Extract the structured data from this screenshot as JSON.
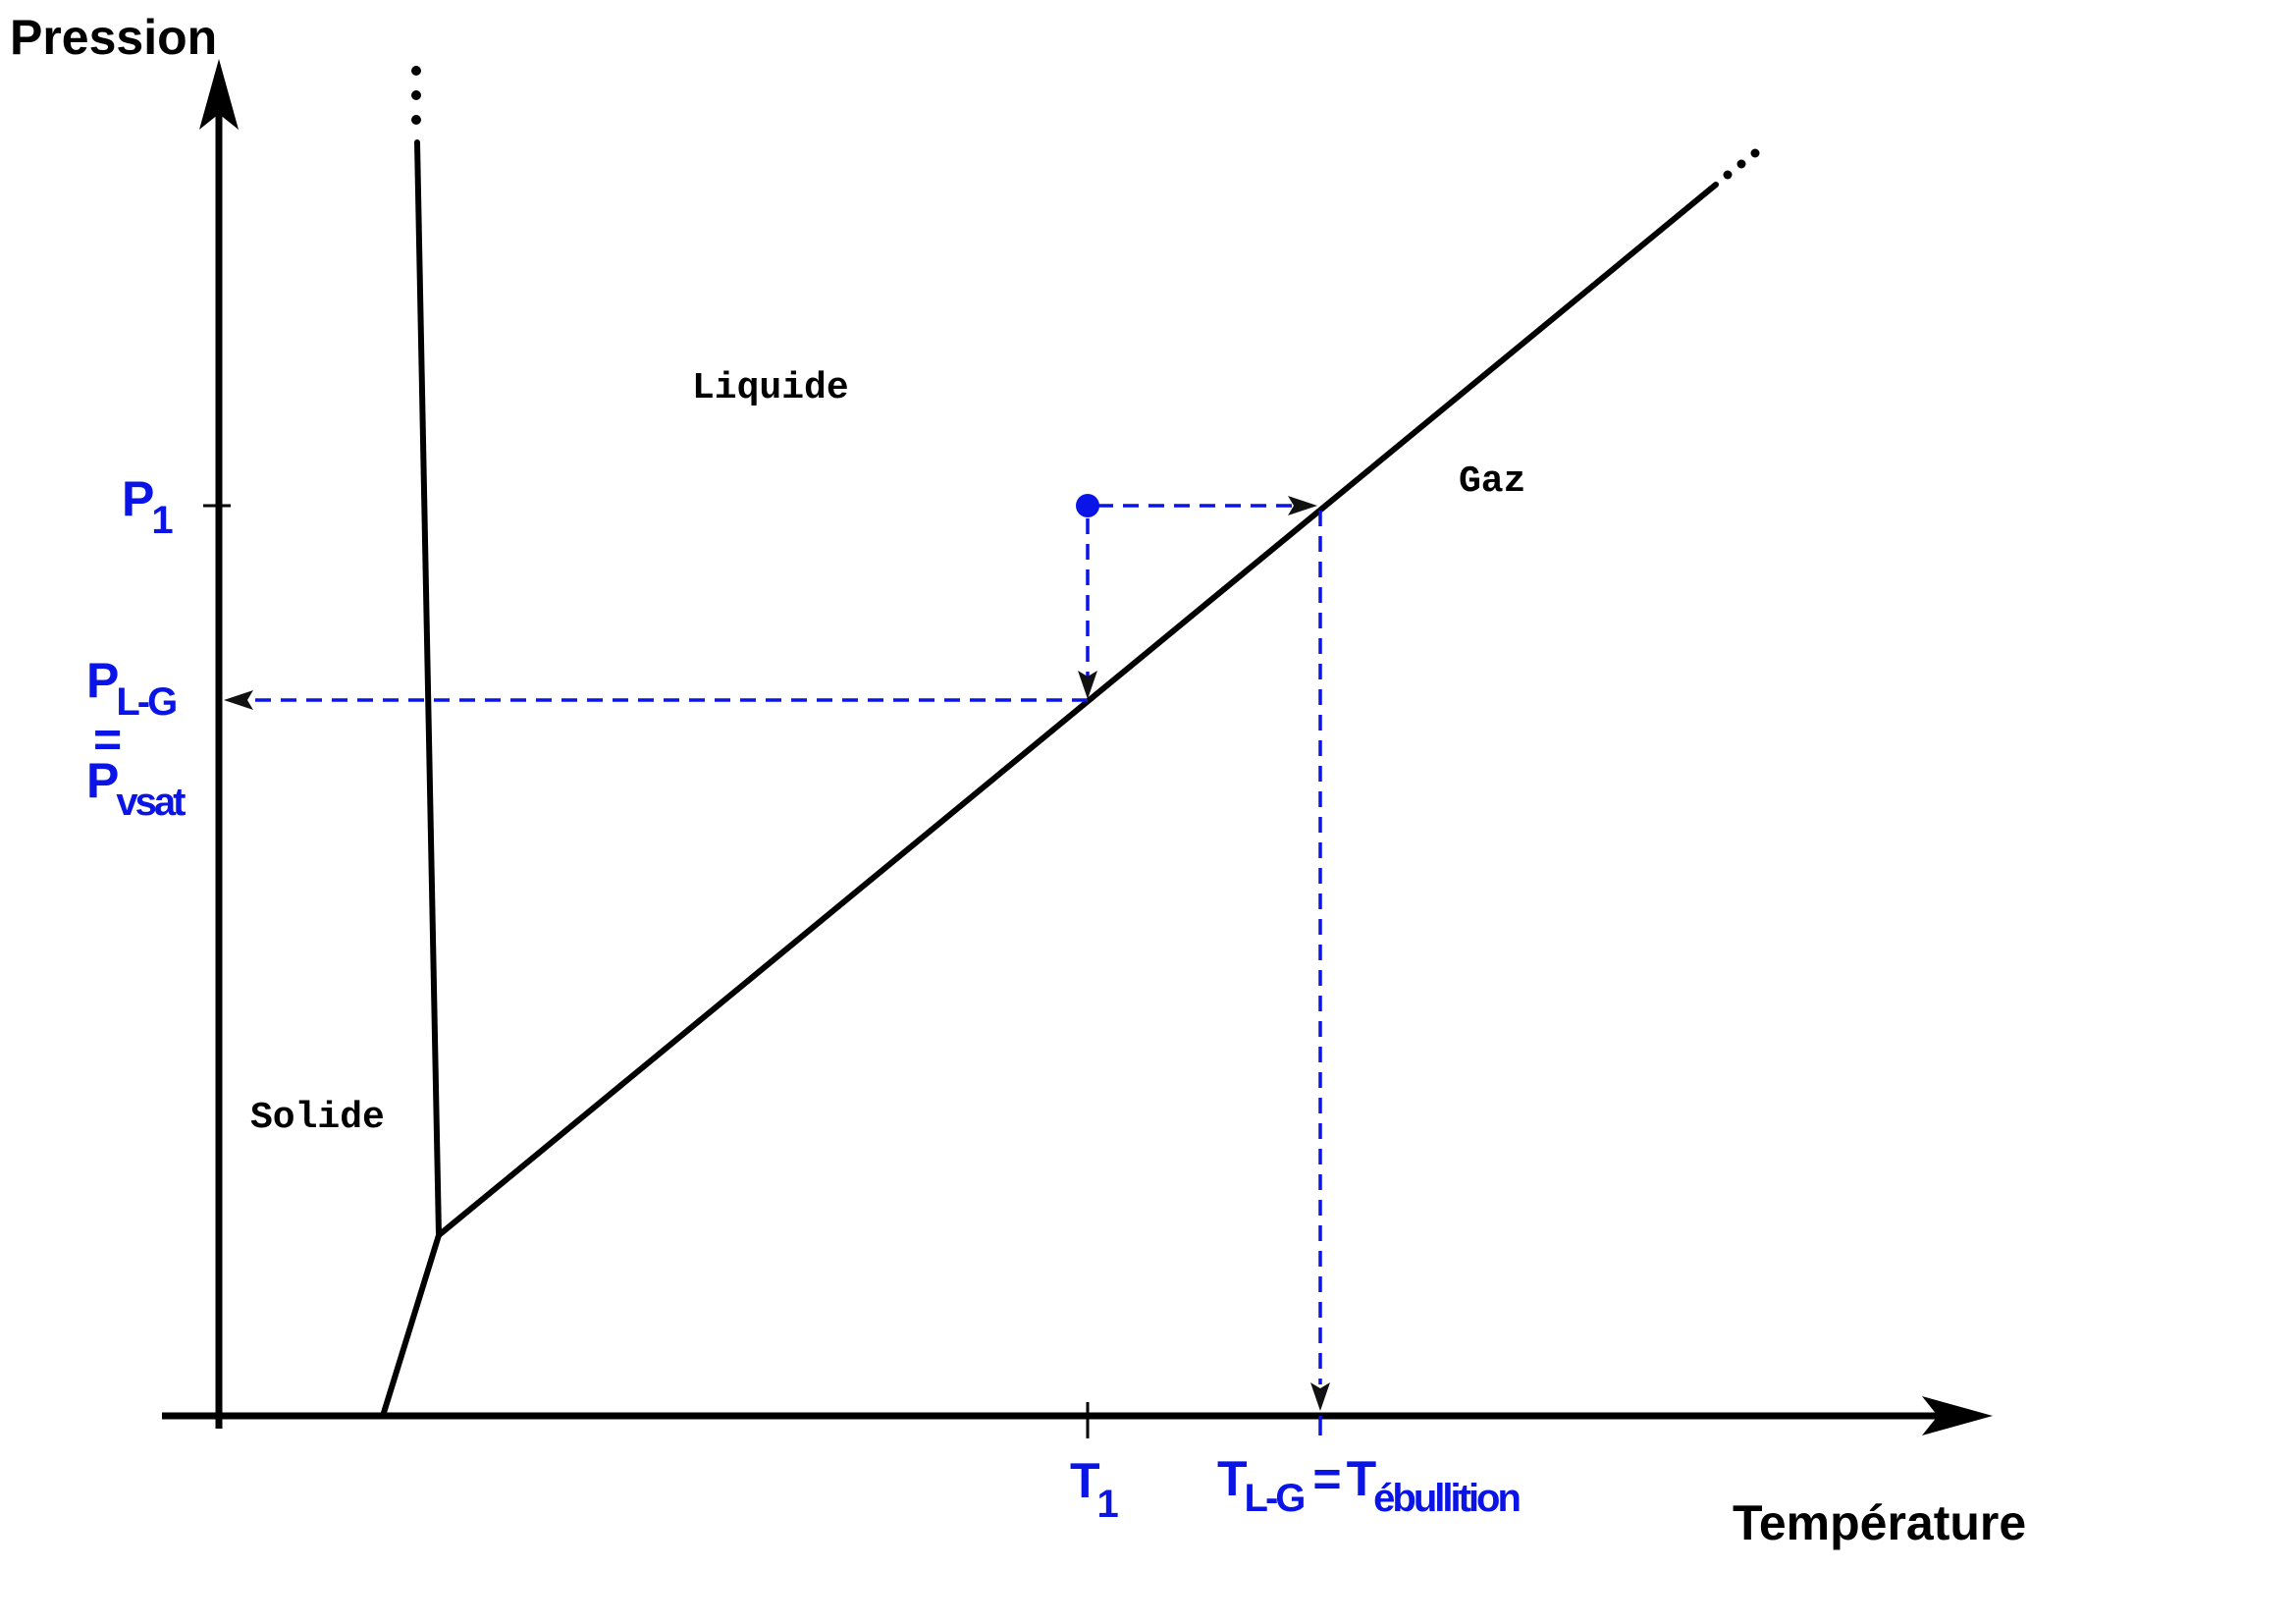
{
  "axes": {
    "y_title": "Pression",
    "x_title": "Température"
  },
  "regions": {
    "solid": "Solide",
    "liquid": "Liquide",
    "gas": "Gaz"
  },
  "labels": {
    "p1": {
      "main": "P",
      "sub": "1"
    },
    "plg": {
      "main": "P",
      "sub": "L-G",
      "eq": "=",
      "main2": "P",
      "sub2": "vsat"
    },
    "t1": {
      "main": "T",
      "sub": "1"
    },
    "tlg": {
      "main": "T",
      "sub": "L-G",
      "eq": "=",
      "main2": "T",
      "sub2": "ébullition"
    }
  },
  "colors": {
    "axis": "#000000",
    "curve": "#000000",
    "annotation": "#0a14e6"
  }
}
